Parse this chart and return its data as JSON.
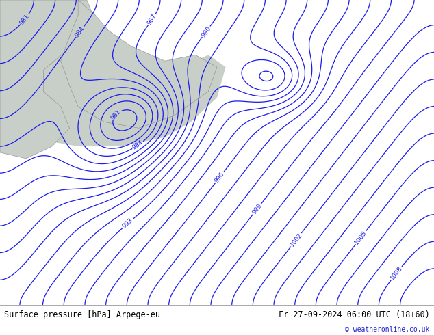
{
  "title_left": "Surface pressure [hPa] Arpege-eu",
  "title_right": "Fr 27-09-2024 06:00 UTC (18+60)",
  "copyright": "© weatheronline.co.uk",
  "bg_color": "#b8d890",
  "sea_color": "#c8cfc8",
  "contour_color": "#1a1aee",
  "contour_linewidth": 0.9,
  "label_fontsize": 6.5,
  "bottom_bar_color": "#ffffff",
  "bottom_text_color": "#000000",
  "figsize": [
    6.34,
    4.9
  ],
  "dpi": 100
}
